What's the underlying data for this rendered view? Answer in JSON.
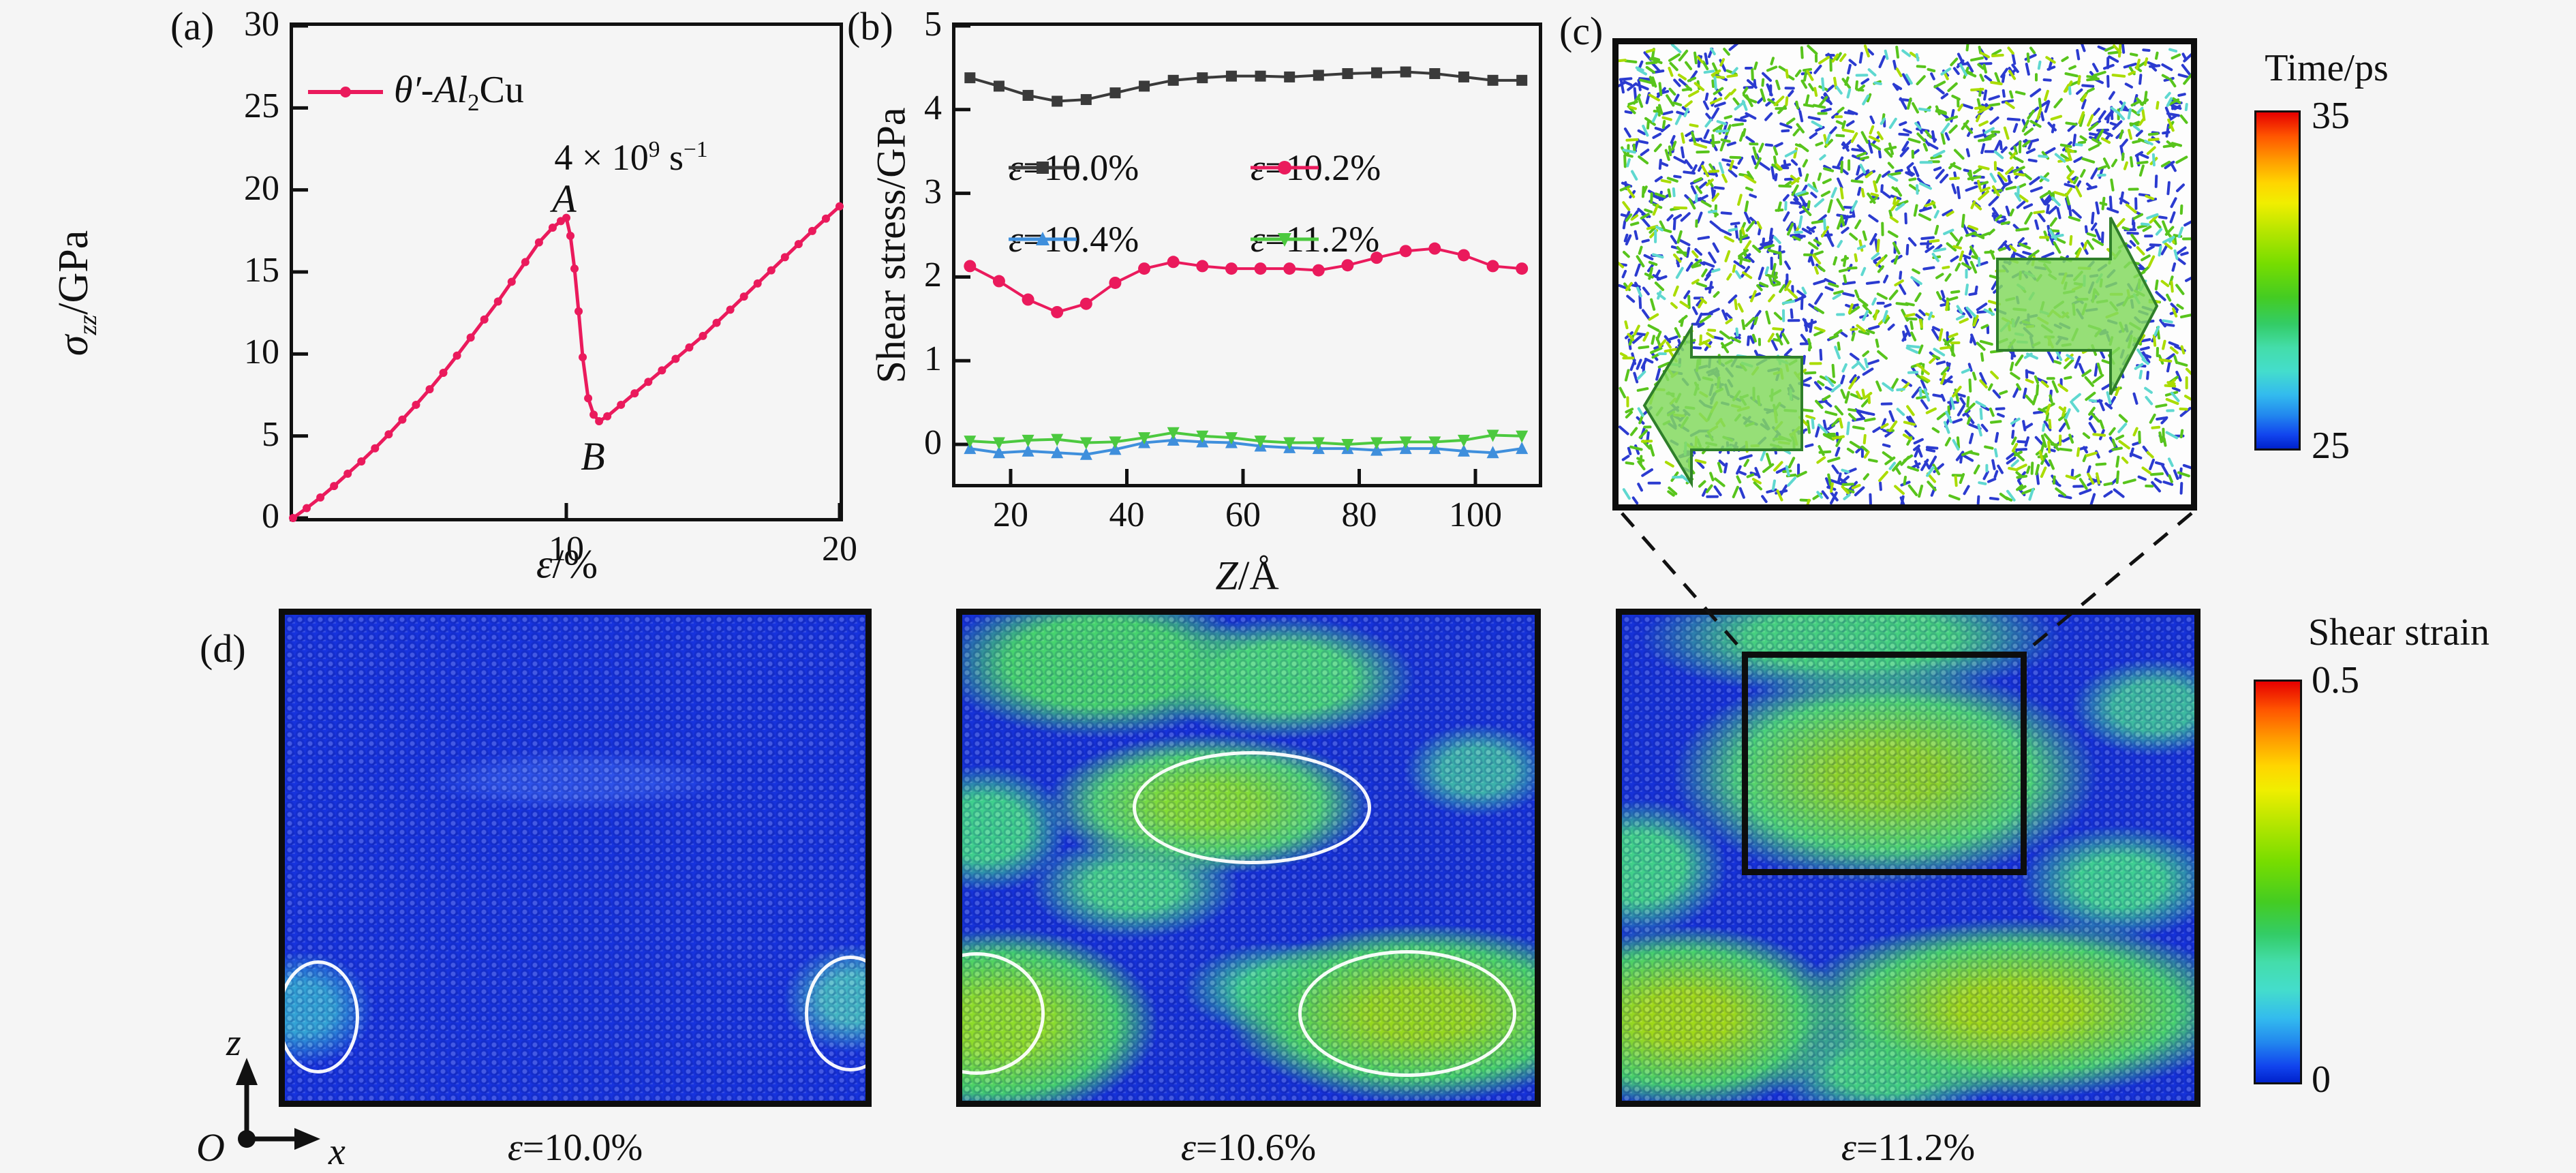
{
  "figure": {
    "background": "#f5f5f5"
  },
  "panel_labels": {
    "a": "(a)",
    "b": "(b)",
    "c": "(c)",
    "d": "(d)"
  },
  "panel_a": {
    "legend": {
      "theta_al": "θ′-Al",
      "sub": "2",
      "cu": "Cu"
    },
    "annotation": {
      "base": "4 × 10",
      "exp": "9",
      "unit": " s",
      "unit_exp": "−1"
    },
    "point_labels": {
      "peak": "A",
      "valley": "B"
    },
    "y_axis": {
      "sigma": "σ",
      "sigma_sub": "zz",
      "unit": "/GPa",
      "ticks": [
        "0",
        "5",
        "10",
        "15",
        "20",
        "25",
        "30"
      ]
    },
    "x_axis": {
      "eps": "ε",
      "unit": "/%",
      "ticks": [
        "10",
        "20"
      ]
    }
  },
  "panel_b": {
    "y_axis": {
      "label": "Shear stress/GPa",
      "ticks": [
        "0",
        "1",
        "2",
        "3",
        "4",
        "5"
      ]
    },
    "x_axis": {
      "z": "Z",
      "unit": "/Å",
      "ticks": [
        "20",
        "40",
        "60",
        "80",
        "100"
      ]
    },
    "legend": [
      {
        "eps": "ε",
        "text": "=10.0%"
      },
      {
        "eps": "ε",
        "text": "=10.2%"
      },
      {
        "eps": "ε",
        "text": "=10.4%"
      },
      {
        "eps": "ε",
        "text": "=11.2%"
      }
    ]
  },
  "panel_c": {
    "colorbar": {
      "title": "Time/ps",
      "max": "35",
      "min": "25"
    }
  },
  "panel_d": {
    "snapshots": [
      {
        "eps": "ε",
        "text": "=10.0%"
      },
      {
        "eps": "ε",
        "text": "=10.6%"
      },
      {
        "eps": "ε",
        "text": "=11.2%"
      }
    ],
    "colorbar": {
      "title": "Shear strain",
      "max": "0.5",
      "min": "0"
    },
    "axes": {
      "z": "z",
      "o": "O",
      "x": "x"
    }
  },
  "chart_data": [
    {
      "type": "line",
      "panel": "a",
      "xlabel": "ε/%",
      "ylabel": "σzz/GPa",
      "xlim": [
        0,
        20
      ],
      "ylim": [
        0,
        30
      ],
      "x_ticks": [
        10,
        20
      ],
      "y_ticks": [
        0,
        5,
        10,
        15,
        20,
        25,
        30
      ],
      "annotations": [
        "strain rate 4 × 10^9 s^-1",
        "A = yield peak at (10, 18.3)",
        "B = stress minimum at (11.2, 5.9)"
      ],
      "series": [
        {
          "name": "θ′-Al2Cu",
          "color": "#ea1a5c",
          "marker": "circle",
          "points": [
            [
              0,
              0
            ],
            [
              0.5,
              0.6
            ],
            [
              1,
              1.25
            ],
            [
              1.5,
              1.95
            ],
            [
              2,
              2.7
            ],
            [
              2.5,
              3.45
            ],
            [
              3,
              4.25
            ],
            [
              3.5,
              5.1
            ],
            [
              4,
              6.0
            ],
            [
              4.5,
              6.9
            ],
            [
              5,
              7.85
            ],
            [
              5.5,
              8.85
            ],
            [
              6,
              9.9
            ],
            [
              6.5,
              11.0
            ],
            [
              7,
              12.1
            ],
            [
              7.5,
              13.2
            ],
            [
              8,
              14.4
            ],
            [
              8.5,
              15.6
            ],
            [
              9,
              16.8
            ],
            [
              9.5,
              17.7
            ],
            [
              9.8,
              18.1
            ],
            [
              10,
              18.3
            ],
            [
              10.15,
              17.2
            ],
            [
              10.3,
              15.2
            ],
            [
              10.45,
              12.6
            ],
            [
              10.6,
              9.8
            ],
            [
              10.8,
              7.3
            ],
            [
              11,
              6.3
            ],
            [
              11.2,
              5.9
            ],
            [
              11.5,
              6.2
            ],
            [
              12,
              6.9
            ],
            [
              12.5,
              7.6
            ],
            [
              13,
              8.3
            ],
            [
              13.5,
              9.0
            ],
            [
              14,
              9.7
            ],
            [
              14.5,
              10.4
            ],
            [
              15,
              11.1
            ],
            [
              15.5,
              11.9
            ],
            [
              16,
              12.7
            ],
            [
              16.5,
              13.5
            ],
            [
              17,
              14.3
            ],
            [
              17.5,
              15.1
            ],
            [
              18,
              15.9
            ],
            [
              18.5,
              16.7
            ],
            [
              19,
              17.5
            ],
            [
              19.5,
              18.25
            ],
            [
              20,
              19.0
            ]
          ]
        }
      ]
    },
    {
      "type": "line",
      "panel": "b",
      "xlabel": "Z/Å",
      "ylabel": "Shear stress/GPa",
      "xlim": [
        10.5,
        111
      ],
      "ylim": [
        -0.47,
        5
      ],
      "x_ticks": [
        20,
        40,
        60,
        80,
        100
      ],
      "y_ticks": [
        0,
        1,
        2,
        3,
        4,
        5
      ],
      "x": [
        13,
        18,
        23,
        28,
        33,
        38,
        43,
        48,
        53,
        58,
        63,
        68,
        73,
        78,
        83,
        88,
        93,
        98,
        103,
        108
      ],
      "series": [
        {
          "name": "ε=10.0%",
          "color": "#3a3a3a",
          "marker": "square",
          "values": [
            4.38,
            4.28,
            4.17,
            4.1,
            4.12,
            4.2,
            4.28,
            4.35,
            4.38,
            4.4,
            4.4,
            4.39,
            4.41,
            4.43,
            4.44,
            4.45,
            4.43,
            4.39,
            4.35,
            4.35
          ]
        },
        {
          "name": "ε=10.2%",
          "color": "#ea1a5c",
          "marker": "circle",
          "values": [
            2.13,
            1.95,
            1.73,
            1.58,
            1.68,
            1.93,
            2.1,
            2.18,
            2.13,
            2.1,
            2.1,
            2.1,
            2.08,
            2.14,
            2.23,
            2.31,
            2.34,
            2.26,
            2.13,
            2.1
          ]
        },
        {
          "name": "ε=10.4%",
          "color": "#3f8fdc",
          "marker": "triangle-up",
          "values": [
            -0.05,
            -0.1,
            -0.08,
            -0.1,
            -0.12,
            -0.06,
            0.02,
            0.05,
            0.03,
            0.02,
            -0.02,
            -0.04,
            -0.05,
            -0.05,
            -0.07,
            -0.05,
            -0.05,
            -0.08,
            -0.1,
            -0.05
          ]
        },
        {
          "name": "ε=11.2%",
          "color": "#4cc93f",
          "marker": "triangle-down",
          "values": [
            0.04,
            0.02,
            0.05,
            0.06,
            0.02,
            0.03,
            0.08,
            0.14,
            0.1,
            0.08,
            0.04,
            0.02,
            0.02,
            0.0,
            0.02,
            0.03,
            0.03,
            0.05,
            0.11,
            0.1
          ]
        }
      ]
    },
    {
      "type": "heatmap",
      "panel": "c",
      "description": "atomic displacement vector field colored by time",
      "colorbar": {
        "title": "Time/ps",
        "min": 25,
        "max": 35
      }
    },
    {
      "type": "heatmap",
      "panel": "d",
      "description": "atomic shear strain maps at three strains",
      "strains": [
        "10.0%",
        "10.6%",
        "11.2%"
      ],
      "colorbar": {
        "title": "Shear strain",
        "min": 0,
        "max": 0.5
      }
    }
  ],
  "colors": {
    "accent_crimson": "#ea1a5c",
    "series_black": "#3a3a3a",
    "series_blue": "#3f8fdc",
    "series_green": "#4cc93f",
    "atom_blue": "#1632d8",
    "atom_green": "#46d06e",
    "quiver_blue": "#2b3bd0",
    "quiver_green": "#58c41c",
    "quiver_lime": "#aadc00",
    "quiver_cyan": "#5fd8d0",
    "block_arrow_fill": "#84d95f",
    "block_arrow_edge": "#2f7f2a"
  }
}
